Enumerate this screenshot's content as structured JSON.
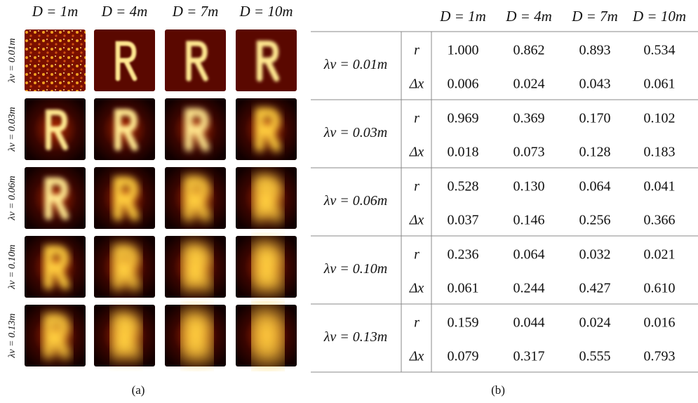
{
  "panel_a": {
    "columns": [
      "D = 1m",
      "D = 4m",
      "D = 7m",
      "D = 10m"
    ],
    "rows": [
      "λv = 0.01m",
      "λv = 0.03m",
      "λv = 0.06m",
      "λv = 0.10m",
      "λv = 0.13m"
    ],
    "caption": "(a)"
  },
  "panel_b": {
    "columns": [
      "D = 1m",
      "D = 4m",
      "D = 7m",
      "D = 10m"
    ],
    "metric_labels": [
      "r",
      "Δx"
    ],
    "rows": [
      {
        "label": "λv = 0.01m",
        "r": [
          "1.000",
          "0.862",
          "0.893",
          "0.534"
        ],
        "dx": [
          "0.006",
          "0.024",
          "0.043",
          "0.061"
        ]
      },
      {
        "label": "λv = 0.03m",
        "r": [
          "0.969",
          "0.369",
          "0.170",
          "0.102"
        ],
        "dx": [
          "0.018",
          "0.073",
          "0.128",
          "0.183"
        ]
      },
      {
        "label": "λv = 0.06m",
        "r": [
          "0.528",
          "0.130",
          "0.064",
          "0.041"
        ],
        "dx": [
          "0.037",
          "0.146",
          "0.256",
          "0.366"
        ]
      },
      {
        "label": "λv = 0.10m",
        "r": [
          "0.236",
          "0.064",
          "0.032",
          "0.021"
        ],
        "dx": [
          "0.061",
          "0.244",
          "0.427",
          "0.610"
        ]
      },
      {
        "label": "λv = 0.13m",
        "r": [
          "0.159",
          "0.044",
          "0.024",
          "0.016"
        ],
        "dx": [
          "0.079",
          "0.317",
          "0.555",
          "0.793"
        ]
      }
    ],
    "caption": "(b)"
  }
}
